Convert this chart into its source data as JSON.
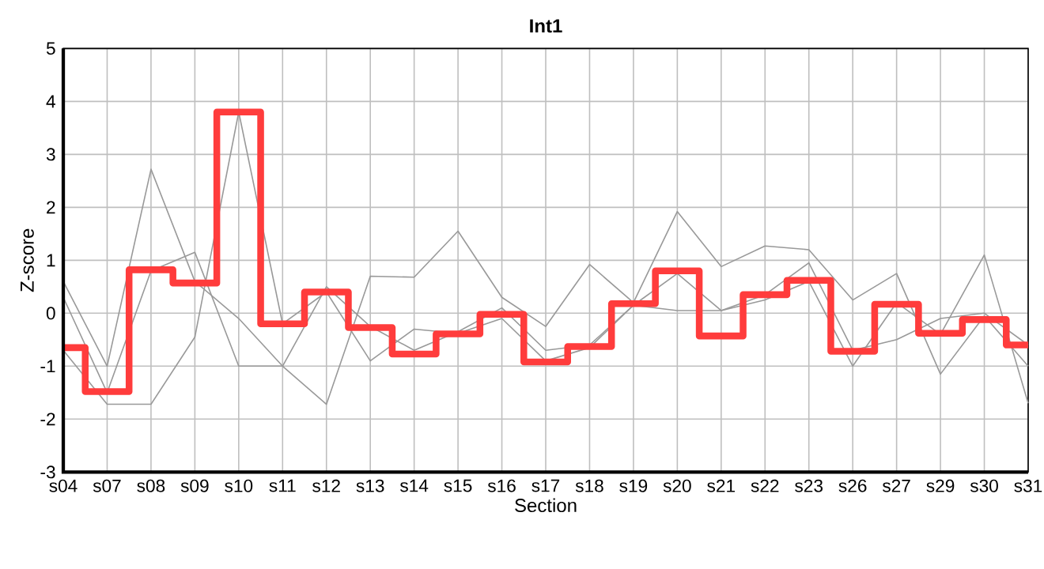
{
  "chart_data": {
    "type": "line",
    "title": "Int1",
    "xlabel": "Section",
    "ylabel": "Z-score",
    "categories": [
      "s04",
      "s07",
      "s08",
      "s09",
      "s10",
      "s11",
      "s12",
      "s13",
      "s14",
      "s15",
      "s16",
      "s17",
      "s18",
      "s19",
      "s20",
      "s21",
      "s22",
      "s23",
      "s26",
      "s27",
      "s29",
      "s30",
      "s31"
    ],
    "series": [
      {
        "color": "#999999",
        "values": [
          0.6,
          -1.0,
          2.72,
          0.6,
          -0.1,
          -1.0,
          0.5,
          -0.25,
          -0.7,
          -0.35,
          0.1,
          -0.7,
          -0.6,
          0.15,
          0.75,
          0.05,
          0.25,
          0.6,
          -1.0,
          0.2,
          -0.4,
          1.1,
          -1.7
        ]
      },
      {
        "color": "#999999",
        "values": [
          0.3,
          -1.5,
          0.8,
          1.15,
          -1.0,
          -1.0,
          -1.72,
          0.7,
          0.68,
          1.55,
          0.3,
          -0.25,
          0.92,
          0.2,
          1.92,
          0.88,
          1.27,
          1.2,
          0.25,
          0.75,
          -1.15,
          -0.05,
          -1.0
        ]
      },
      {
        "color": "#999999",
        "values": [
          -0.7,
          -1.72,
          -1.72,
          -0.45,
          3.8,
          -0.2,
          0.4,
          -0.9,
          -0.3,
          -0.38,
          -0.1,
          -0.9,
          -0.65,
          0.15,
          0.05,
          0.05,
          0.35,
          0.95,
          -0.7,
          -0.5,
          -0.1,
          0.0,
          -0.6
        ]
      },
      {
        "type": "step",
        "color": "#ff3c3c",
        "values": [
          -0.65,
          -1.48,
          0.82,
          0.57,
          3.8,
          -0.2,
          0.4,
          -0.27,
          -0.77,
          -0.39,
          -0.02,
          -0.92,
          -0.63,
          0.18,
          0.8,
          -0.43,
          0.35,
          0.62,
          -0.72,
          0.17,
          -0.38,
          -0.12,
          -0.6
        ]
      }
    ],
    "ylim": [
      -3,
      5
    ],
    "yticks": [
      -3,
      -2,
      -1,
      0,
      1,
      2,
      3,
      4,
      5
    ],
    "grid": true,
    "marker": "none",
    "line_style": "solid"
  }
}
